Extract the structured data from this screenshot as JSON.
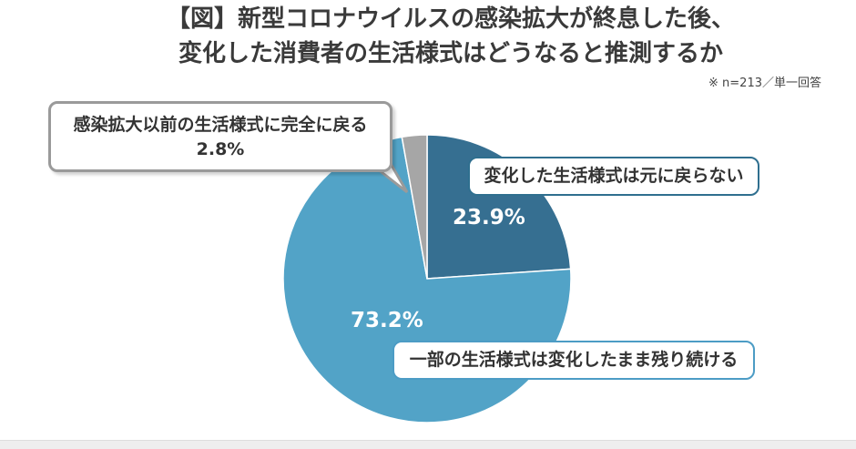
{
  "title_lines": [
    "【図】新型コロナウイルスの感染拡大が終息した後、",
    "変化した消費者の生活様式はどうなると推測するか"
  ],
  "note": "※ n=213／単一回答",
  "chart_data": {
    "type": "pie",
    "title": "【図】新型コロナウイルスの感染拡大が終息した後、変化した消費者の生活様式はどうなると推測するか",
    "unit": "%",
    "slices": [
      {
        "label": "変化した生活様式は元に戻らない",
        "value": 23.9,
        "value_label": "23.9%",
        "color": "#366f91"
      },
      {
        "label": "一部の生活様式は変化したまま残り続ける",
        "value": 73.2,
        "value_label": "73.2%",
        "color": "#52a3c7"
      },
      {
        "label": "感染拡大以前の生活様式に完全に戻る",
        "value": 2.8,
        "value_label": "2.8%",
        "color": "#a6a6a6"
      }
    ],
    "start_angle_deg": 0,
    "direction": "clockwise",
    "legend": "callouts"
  }
}
